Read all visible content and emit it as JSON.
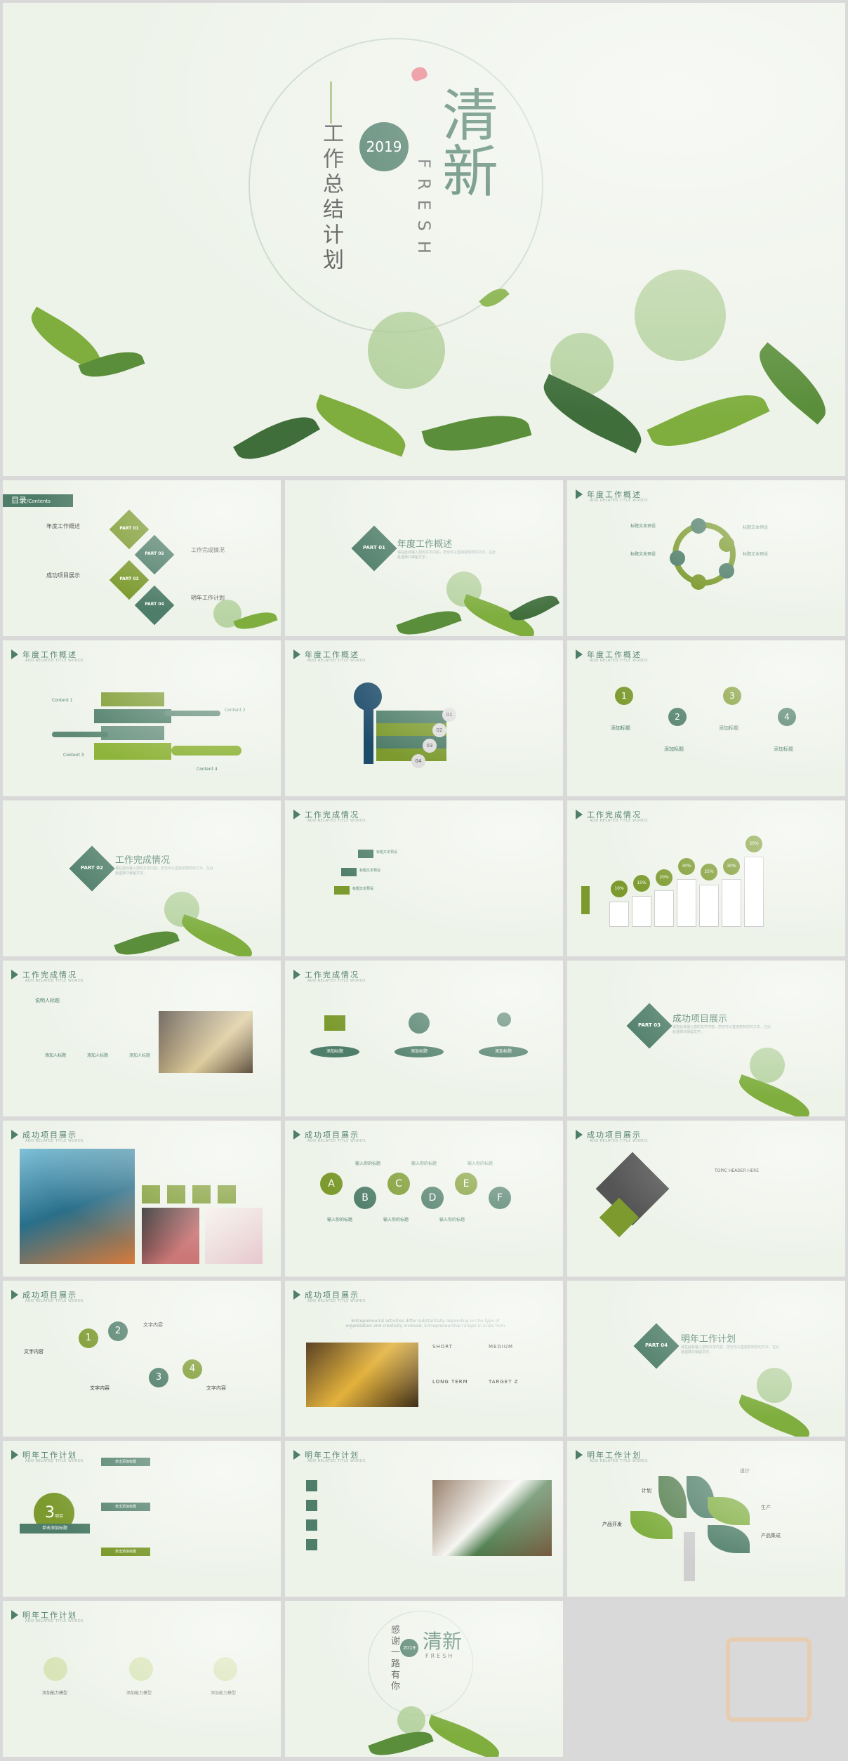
{
  "cover": {
    "year": "2019",
    "title_big": "清新",
    "title_en": "FRESH",
    "subtitle": "工作总结计划"
  },
  "toc": {
    "title": "目录",
    "title_en": "/Contents",
    "items": [
      {
        "part": "PART 01",
        "label": "年度工作概述"
      },
      {
        "part": "PART 02",
        "label": "工作完成情况"
      },
      {
        "part": "PART 03",
        "label": "成功项目展示"
      },
      {
        "part": "PART 04",
        "label": "明年工作计划"
      }
    ]
  },
  "sections": {
    "s1": {
      "part": "PART 01",
      "title": "年度工作概述",
      "desc": "请在此处输入您的文字内容，您也可以直接复制您的文本，在此处选择只保留文字。"
    },
    "s2": {
      "part": "PART 02",
      "title": "工作完成情况",
      "desc": "请在此处输入您的文字内容，您也可以直接复制您的文本，在此处选择只保留文字。"
    },
    "s3": {
      "part": "PART 03",
      "title": "成功项目展示",
      "desc": "请在此处输入您的文字内容，您也可以直接复制您的文本，在此处选择只保留文字。"
    },
    "s4": {
      "part": "PART 04",
      "title": "明年工作计划",
      "desc": "请在此处输入您的文字内容，您也可以直接复制您的文本，在此处选择只保留文字。"
    }
  },
  "header_sub": "ADD RELATED TITLE WORDS",
  "s3_labels": [
    "标题文本预设",
    "标题文本预设",
    "标题文本预设",
    "标题文本预设"
  ],
  "s4_contents": [
    "Content 1",
    "Content 2",
    "Content 3",
    "Content 4"
  ],
  "s5_nums": [
    "01",
    "02",
    "03",
    "04"
  ],
  "s6_items": [
    {
      "num": "1",
      "label": "添加标题"
    },
    {
      "num": "2",
      "label": "添加标题"
    },
    {
      "num": "3",
      "label": "添加标题"
    },
    {
      "num": "4",
      "label": "添加标题"
    }
  ],
  "s8_labels": [
    "标题文本预设",
    "标题文本预设",
    "标题文本预设"
  ],
  "s9_pcts": [
    "10%",
    "15%",
    "20%",
    "30%",
    "25%",
    "30%",
    "50%"
  ],
  "s10": {
    "title": "说明人标题",
    "tags": [
      "添加人标题",
      "添加人标题",
      "添加人标题"
    ]
  },
  "s11_labels": [
    "添加标题",
    "添加标题",
    "添加标题"
  ],
  "s14_letters": [
    "A",
    "B",
    "C",
    "D",
    "E",
    "F"
  ],
  "s14_label": "输入你的标题",
  "s15": {
    "title": "TOPIC HEADER HERE"
  },
  "s16": {
    "nums": [
      "1",
      "2",
      "3",
      "4"
    ],
    "label": "文字内容"
  },
  "s17": {
    "intro": "Entrepreneurial activities differ substantially depending on the type of organization and creativity involved. Entrepreneurship ranges in scale from",
    "terms": [
      "SHORT",
      "MEDIUM",
      "LONG TERM",
      "TARGET Z"
    ]
  },
  "s19": {
    "num": "3",
    "unit": "项目",
    "banner": "单击添加标题",
    "tags": [
      "单击添加标题",
      "单击添加标题",
      "单击添加标题"
    ]
  },
  "s21_labels": [
    "设计",
    "计划",
    "生产",
    "产品开发",
    "产品集成"
  ],
  "s22_labels": [
    "添加能力模型",
    "添加能力模型",
    "添加能力模型"
  ],
  "end": {
    "title_big": "清新",
    "title_en": "FRESH",
    "thanks": "感谢一路有你",
    "year": "2019"
  },
  "colors": {
    "primary": "#4e7d69",
    "olive": "#7c9a2e",
    "bg": "#eef3ea"
  }
}
